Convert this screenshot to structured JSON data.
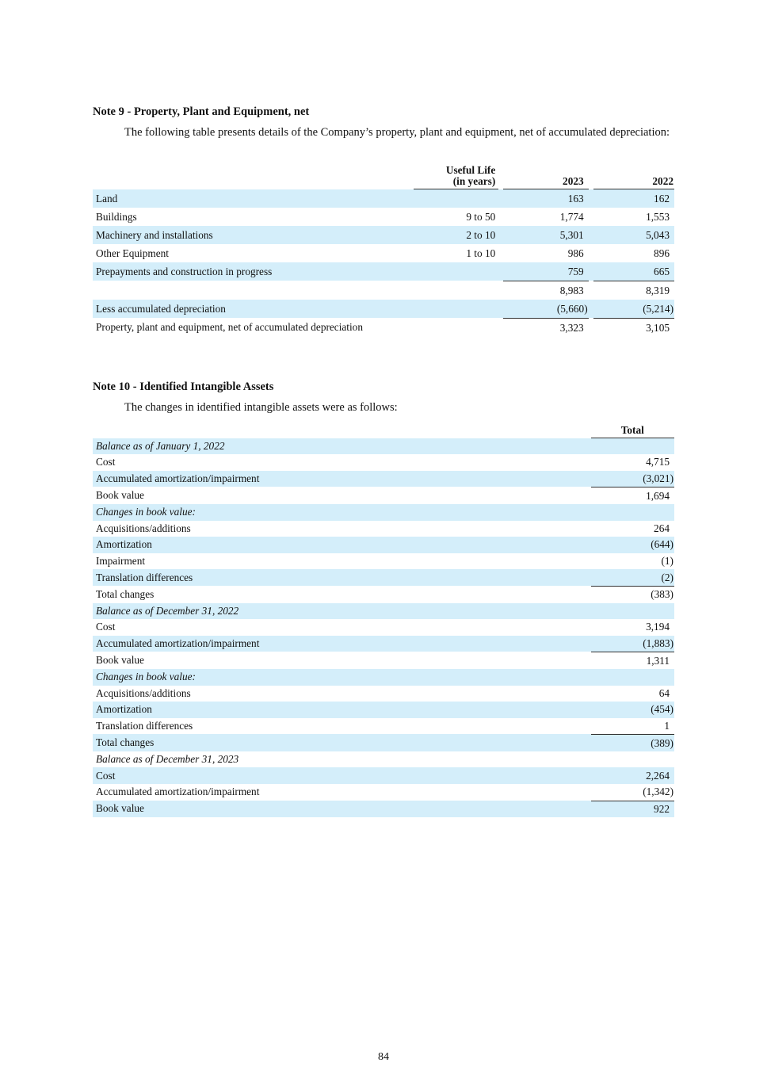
{
  "note9": {
    "title": "Note 9 - Property, Plant and Equipment, net",
    "intro": "The following table presents details of the Company’s property, plant and equipment, net of accumulated depreciation:",
    "headers": {
      "life_line1": "Useful Life",
      "life_line2": "(in years)",
      "y2023": "2023",
      "y2022": "2022"
    },
    "rows": [
      {
        "label": "Land",
        "life": "",
        "v2023": "163",
        "v2022": "162"
      },
      {
        "label": "Buildings",
        "life": "9 to 50",
        "v2023": "1,774",
        "v2022": "1,553"
      },
      {
        "label": "Machinery and installations",
        "life": "2 to 10",
        "v2023": "5,301",
        "v2022": "5,043"
      },
      {
        "label": "Other Equipment",
        "life": "1 to 10",
        "v2023": "986",
        "v2022": "896"
      },
      {
        "label": "Prepayments and construction in progress",
        "life": "",
        "v2023": "759",
        "v2022": "665"
      },
      {
        "label": "",
        "life": "",
        "v2023": "8,983",
        "v2022": "8,319"
      },
      {
        "label": "Less accumulated depreciation",
        "life": "",
        "v2023": "(5,660)",
        "v2022": "(5,214)"
      },
      {
        "label": "Property, plant and equipment, net of accumulated depreciation",
        "life": "",
        "v2023": "3,323",
        "v2022": "3,105"
      }
    ]
  },
  "note10": {
    "title": "Note 10 - Identified Intangible Assets",
    "intro": "The changes in identified intangible assets were as follows:",
    "header_total": "Total",
    "rows": [
      {
        "label": "Balance as of January 1, 2022",
        "value": "",
        "italic": true
      },
      {
        "label": "Cost",
        "value": "4,715"
      },
      {
        "label": "Accumulated amortization/impairment",
        "value": "(3,021)"
      },
      {
        "label": "Book value",
        "value": "1,694",
        "rule": true
      },
      {
        "label": "Changes in book value:",
        "value": "",
        "italic": true
      },
      {
        "label": "Acquisitions/additions",
        "value": "264"
      },
      {
        "label": "Amortization",
        "value": "(644)"
      },
      {
        "label": "Impairment",
        "value": "(1)"
      },
      {
        "label": "Translation differences",
        "value": "(2)"
      },
      {
        "label": "Total changes",
        "value": "(383)",
        "rule": true
      },
      {
        "label": "Balance as of December 31, 2022",
        "value": "",
        "italic": true
      },
      {
        "label": "Cost",
        "value": "3,194"
      },
      {
        "label": "Accumulated amortization/impairment",
        "value": "(1,883)"
      },
      {
        "label": "Book value",
        "value": "1,311",
        "rule": true
      },
      {
        "label": "Changes in book value:",
        "value": "",
        "italic": true
      },
      {
        "label": "Acquisitions/additions",
        "value": "64"
      },
      {
        "label": "Amortization",
        "value": "(454)"
      },
      {
        "label": "Translation differences",
        "value": "1"
      },
      {
        "label": "Total changes",
        "value": "(389)",
        "rule": true
      },
      {
        "label": "Balance as of December 31, 2023",
        "value": "",
        "italic": true
      },
      {
        "label": "Cost",
        "value": "2,264"
      },
      {
        "label": "Accumulated amortization/impairment",
        "value": "(1,342)"
      },
      {
        "label": "Book value",
        "value": "922",
        "rule": true
      }
    ]
  },
  "colors": {
    "row_shade": "#d4eefa"
  },
  "page_number": "84"
}
